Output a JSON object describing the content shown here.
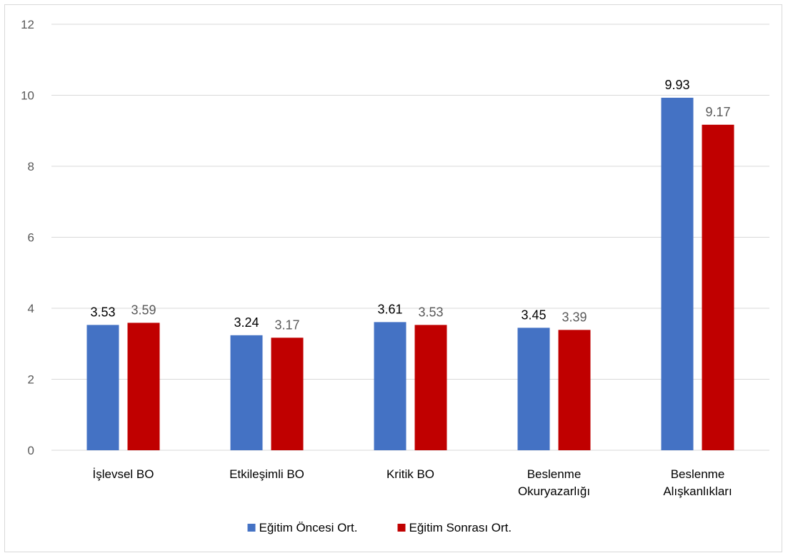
{
  "chart_data": {
    "type": "bar",
    "categories": [
      [
        "İşlevsel BO"
      ],
      [
        "Etkileşimli BO"
      ],
      [
        "Kritik BO"
      ],
      [
        "Beslenme",
        "Okuryazarlığı"
      ],
      [
        "Beslenme",
        "Alışkanlıkları"
      ]
    ],
    "series": [
      {
        "name": "Eğitim Öncesi Ort.",
        "values": [
          3.53,
          3.24,
          3.61,
          3.45,
          9.93
        ],
        "color": "#4472C4",
        "label_color": "#000000"
      },
      {
        "name": "Eğitim Sonrası Ort.",
        "values": [
          3.59,
          3.17,
          3.53,
          3.39,
          9.17
        ],
        "color": "#C00000",
        "label_color": "#595959"
      }
    ],
    "value_labels": [
      [
        "3.53",
        "3.24",
        "3.61",
        "3.45",
        "9.93"
      ],
      [
        "3.59",
        "3.17",
        "3.53",
        "3.39",
        "9.17"
      ]
    ],
    "ylim": [
      0,
      12
    ],
    "yticks": [
      0,
      2,
      4,
      6,
      8,
      10,
      12
    ],
    "grid": true,
    "legend_position": "bottom",
    "title": "",
    "xlabel": "",
    "ylabel": ""
  }
}
